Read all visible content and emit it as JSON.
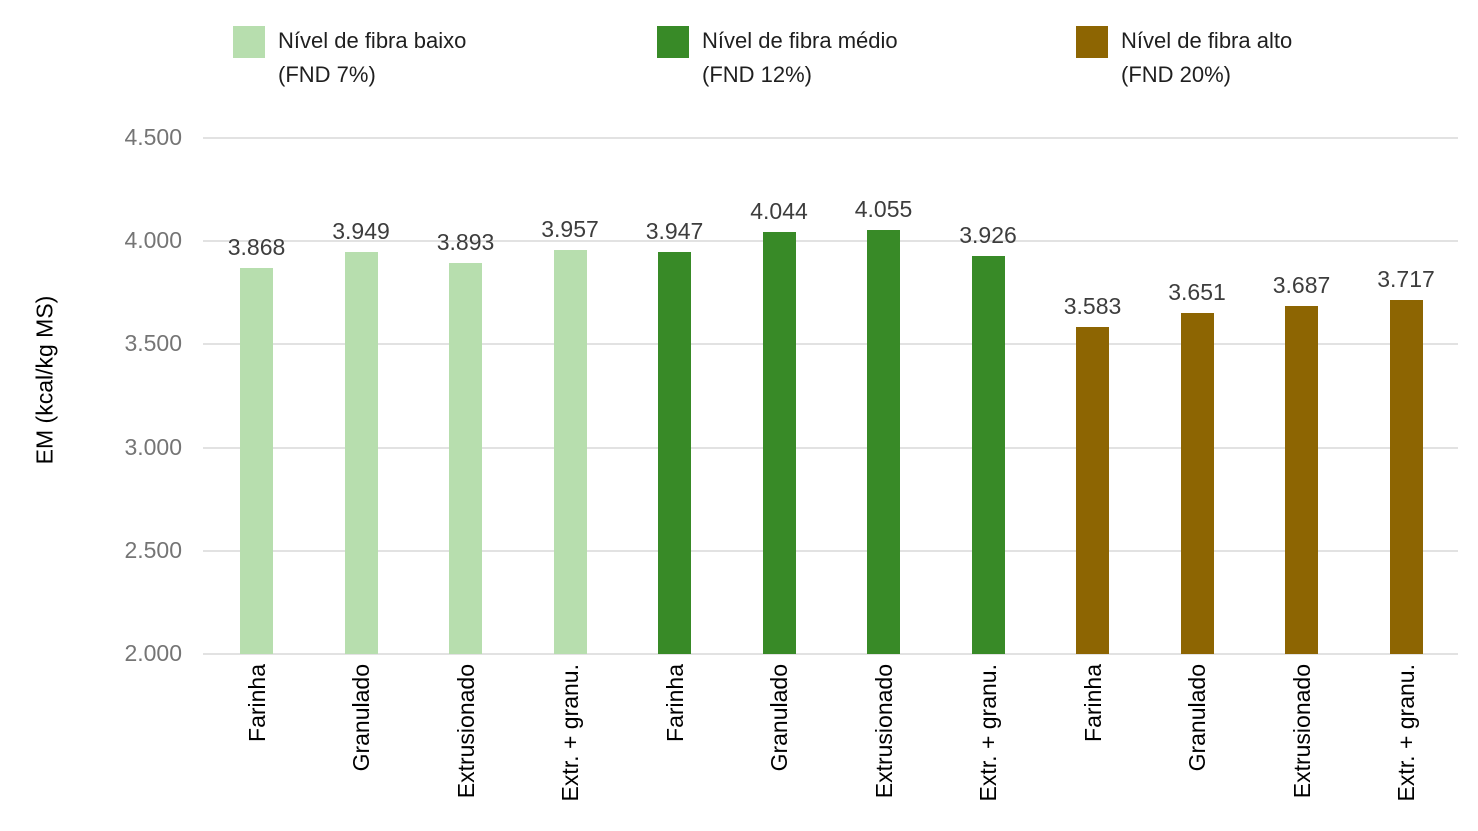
{
  "chart_data": {
    "type": "bar",
    "title": "",
    "xlabel": "",
    "ylabel": "EM (kcal/kg MS)",
    "ylim": [
      2000,
      4500
    ],
    "ytick_step": 500,
    "yticks": [
      "4.500",
      "4.000",
      "3.500",
      "3.000",
      "2.500",
      "2.000"
    ],
    "grid": true,
    "legend_position": "top",
    "categories": [
      "Farinha",
      "Granulado",
      "Extrusionado",
      "Extr. + granu."
    ],
    "series": [
      {
        "name": "Nível de fibra baixo (FND 7%)",
        "legend_line1": "Nível de fibra baixo",
        "legend_line2": "(FND 7%)",
        "color": "#b7deae",
        "values": [
          3868,
          3949,
          3893,
          3957
        ],
        "value_labels": [
          "3.868",
          "3.949",
          "3.893",
          "3.957"
        ]
      },
      {
        "name": "Nível de fibra médio (FND 12%)",
        "legend_line1": "Nível de fibra médio",
        "legend_line2": "(FND 12%)",
        "color": "#388a27",
        "values": [
          3947,
          4044,
          4055,
          3926
        ],
        "value_labels": [
          "3.947",
          "4.044",
          "4.055",
          "3.926"
        ]
      },
      {
        "name": "Nível de fibra alto (FND 20%)",
        "legend_line1": "Nível de fibra alto",
        "legend_line2": "(FND 20%)",
        "color": "#8d6502",
        "values": [
          3583,
          3651,
          3687,
          3717
        ],
        "value_labels": [
          "3.583",
          "3.651",
          "3.687",
          "3.717"
        ]
      }
    ],
    "colors": {
      "gridline": "#e2e2e2",
      "y_tick_text": "#757575",
      "value_label_text": "#3d3d3d",
      "x_tick_text": "#000000",
      "legend_text": "#1f1f1f",
      "background": "#ffffff"
    }
  }
}
